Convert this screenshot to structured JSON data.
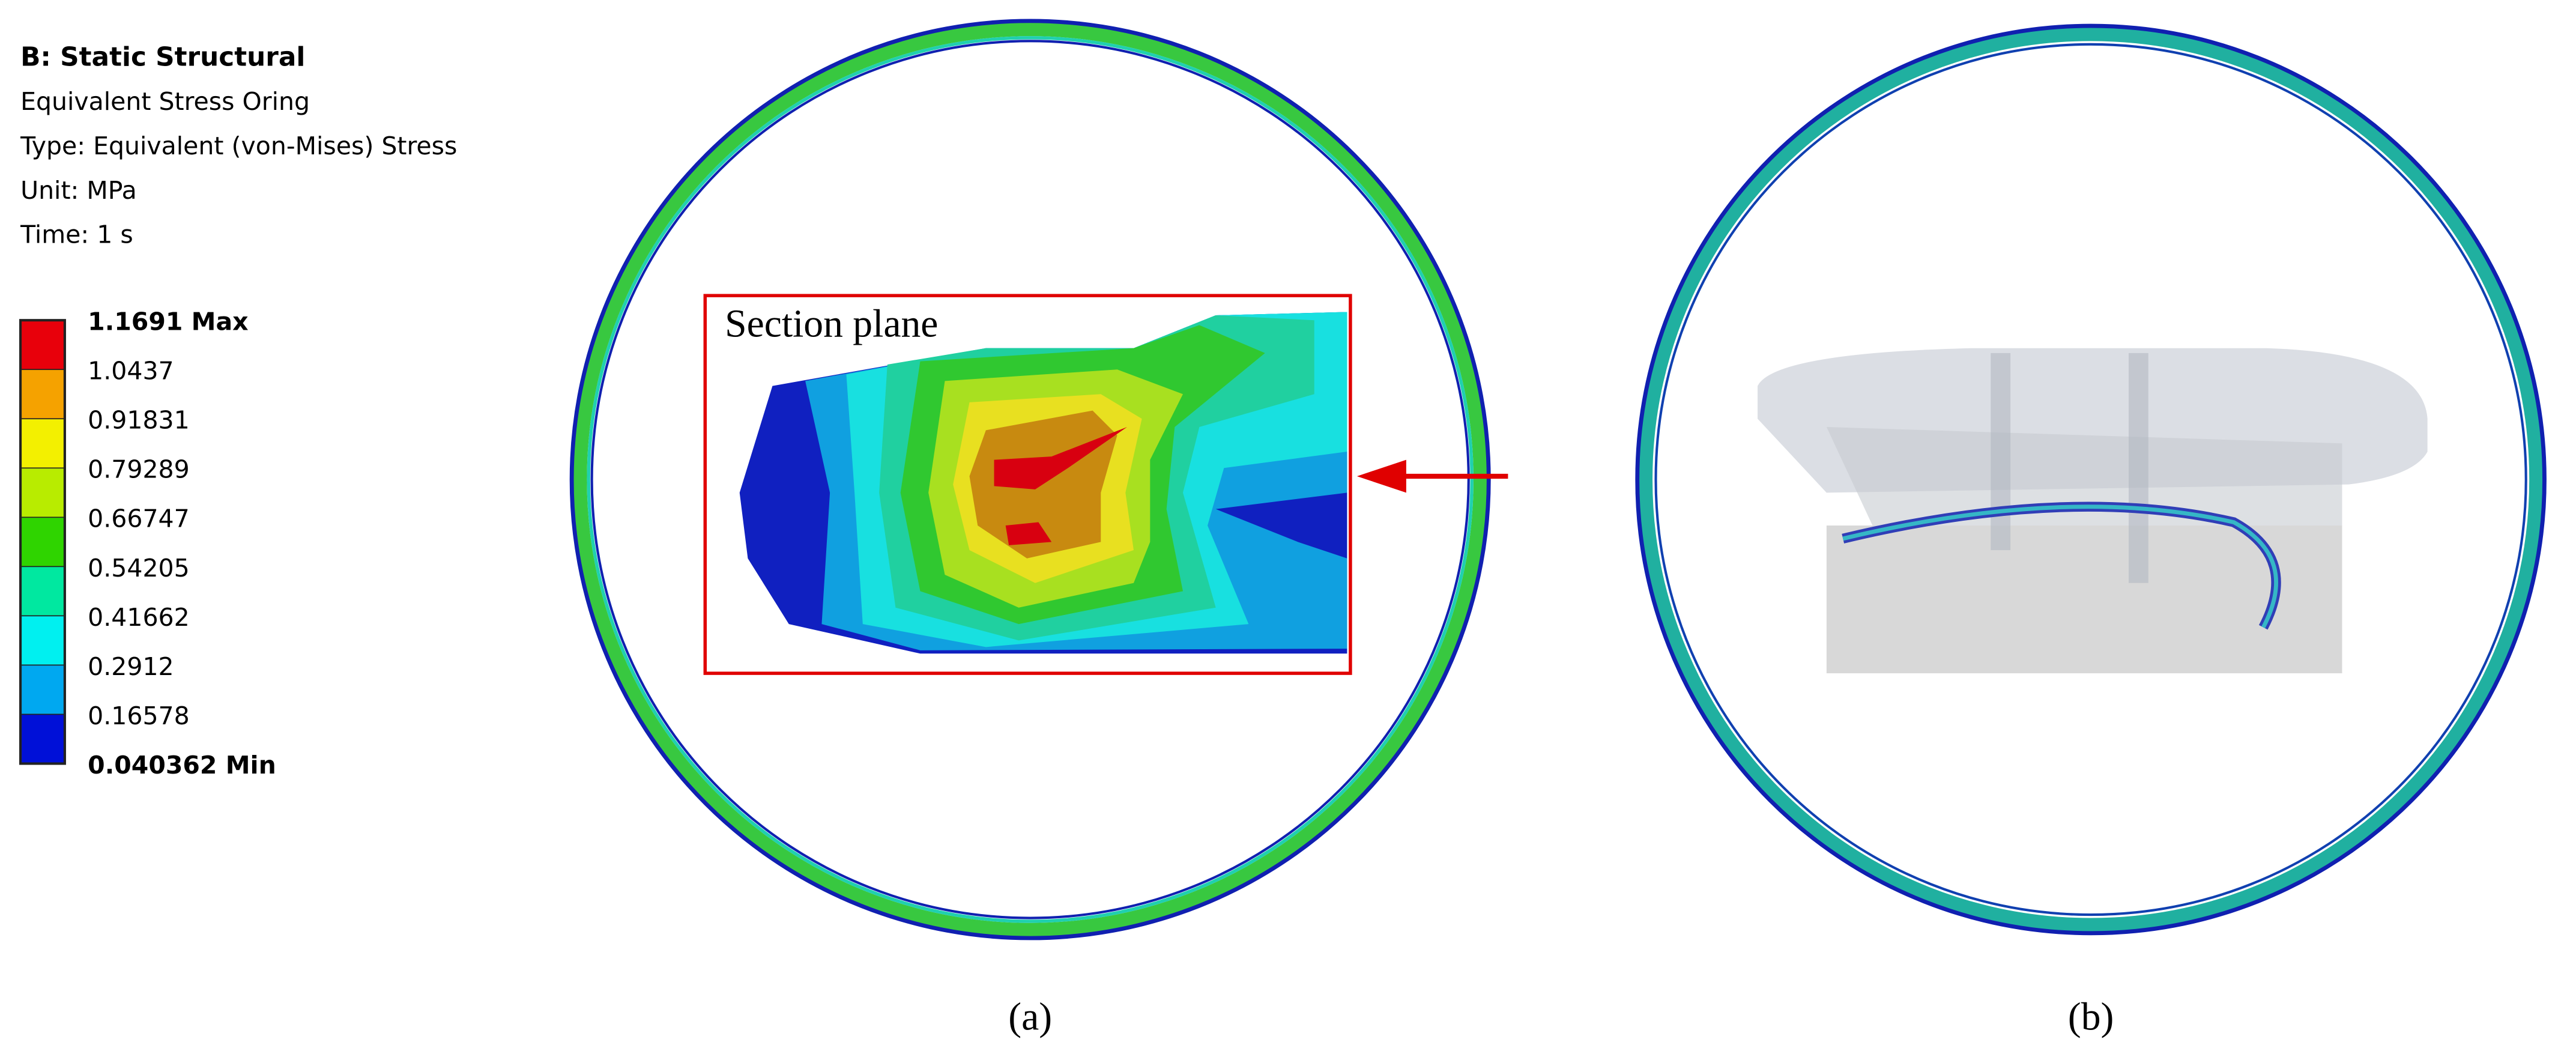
{
  "header": {
    "title": "B: Static Structural",
    "lines": [
      "Equivalent Stress Oring",
      "Type: Equivalent (von-Mises) Stress",
      "Unit: MPa",
      "Time: 1 s"
    ]
  },
  "legend": {
    "labels": [
      "1.1691 Max",
      "1.0437",
      "0.91831",
      "0.79289",
      "0.66747",
      "0.54205",
      "0.41662",
      "0.2912",
      "0.16578",
      "0.040362 Min"
    ],
    "colors": [
      "#e8000b",
      "#f5a200",
      "#f3f000",
      "#b8ec00",
      "#2fd400",
      "#00e8a0",
      "#00f0f0",
      "#00a8f0",
      "#0010d8"
    ]
  },
  "inset": {
    "label": "Section plane"
  },
  "captions": [
    "(a)",
    "(b)"
  ]
}
